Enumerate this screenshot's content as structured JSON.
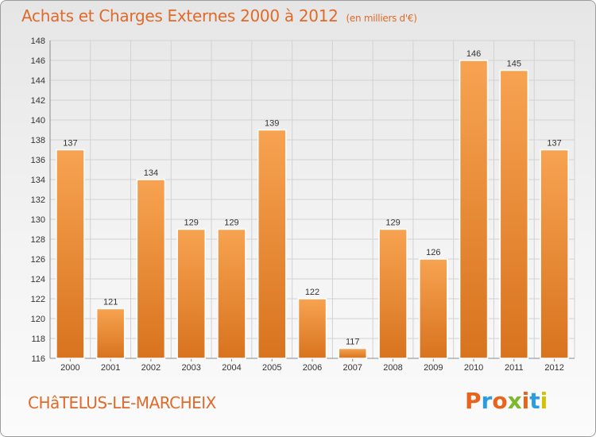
{
  "header": {
    "title": "Achats et Charges Externes 2000 à 2012",
    "subtitle": "(en milliers d'€)"
  },
  "footer": {
    "town": "CHâTELUS-LE-MARCHEIX",
    "logo_text": "Proxiti"
  },
  "colors": {
    "accent": "#e06a2a",
    "bar_top": "#f7a351",
    "bar_bottom": "#d8731e",
    "logo_letters": [
      "#e8641c",
      "#2a9de0",
      "#e8641c",
      "#7ab929",
      "#e8641c",
      "#2a9de0",
      "#d4c200"
    ]
  },
  "chart_data": {
    "type": "bar",
    "title": "Achats et Charges Externes 2000 à 2012",
    "subtitle": "(en milliers d'€)",
    "categories": [
      "2000",
      "2001",
      "2002",
      "2003",
      "2004",
      "2005",
      "2006",
      "2007",
      "2008",
      "2009",
      "2010",
      "2011",
      "2012"
    ],
    "values": [
      137,
      121,
      134,
      129,
      129,
      139,
      122,
      117,
      129,
      126,
      146,
      145,
      137
    ],
    "ylim": [
      116,
      148
    ],
    "yticks": [
      116,
      118,
      120,
      122,
      124,
      126,
      128,
      130,
      132,
      134,
      136,
      138,
      140,
      142,
      144,
      146,
      148
    ],
    "grid": true,
    "legend": "none"
  }
}
